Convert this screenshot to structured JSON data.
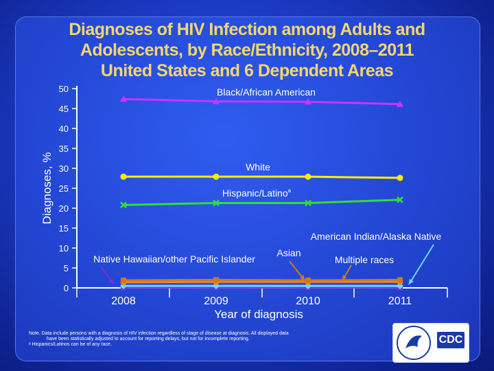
{
  "title_lines": [
    "Diagnoses of HIV Infection among Adults and",
    "Adolescents, by Race/Ethnicity, 2008–2011",
    "United States and 6 Dependent Areas"
  ],
  "notes": {
    "line1": "Note. Data include persons with a diagnosis of HIV infection regardless of stage of disease at diagnosis. All displayed data",
    "line2": "have been statistically adjusted to account for reporting delays, but not for incomplete reporting.",
    "line3": "ᵃ Hispanics/Latinos can be of any race."
  },
  "logo": {
    "text": "CDC"
  },
  "colors": {
    "background": "#1f44d0",
    "title": "#f5d76e",
    "axis": "#ffffff",
    "black_african_american": "#cc33ff",
    "white": "#ffee00",
    "hispanic_latino": "#33dd33",
    "american_indian": "#66ddff",
    "asian": "#d07a16",
    "multiple_races": "#e8843a",
    "nhopi": "#7a2fd6"
  },
  "chart_data": {
    "type": "line",
    "categories": [
      "2008",
      "2009",
      "2010",
      "2011"
    ],
    "xlabel": "Year of diagnosis",
    "ylabel": "Diagnoses, %",
    "ylim": [
      0,
      50
    ],
    "yticks": [
      0,
      5,
      10,
      15,
      20,
      25,
      30,
      35,
      40,
      45,
      50
    ],
    "series": [
      {
        "name": "Black/African American",
        "label": "Black/African American",
        "values": [
          47.4,
          46.8,
          46.7,
          46.1
        ],
        "marker": "triangle",
        "color": "#cc33ff"
      },
      {
        "name": "White",
        "label": "White",
        "values": [
          27.9,
          27.9,
          27.9,
          27.6
        ],
        "marker": "circle",
        "color": "#ffee00"
      },
      {
        "name": "Hispanic/Latino",
        "label": "Hispanic/Latino",
        "label_sup": "a",
        "values": [
          20.8,
          21.3,
          21.3,
          22.1
        ],
        "marker": "x",
        "color": "#33dd33"
      },
      {
        "name": "American Indian/Alaska Native",
        "label": "American Indian/Alaska Native",
        "values": [
          0.5,
          0.5,
          0.5,
          0.5
        ],
        "marker": "diamond",
        "color": "#66ddff"
      },
      {
        "name": "Asian",
        "label": "Asian",
        "values": [
          1.9,
          2.0,
          1.9,
          2.0
        ],
        "marker": "square",
        "color": "#d07a16"
      },
      {
        "name": "Multiple races",
        "label": "Multiple races",
        "values": [
          1.4,
          1.5,
          1.5,
          1.5
        ],
        "marker": "circle",
        "color": "#e8843a"
      },
      {
        "name": "Native Hawaiian/other Pacific Islander",
        "label": "Native Hawaiian/other Pacific Islander",
        "values": [
          0.1,
          0.1,
          0.1,
          0.1
        ],
        "marker": "square",
        "color": "#7a2fd6"
      }
    ]
  }
}
